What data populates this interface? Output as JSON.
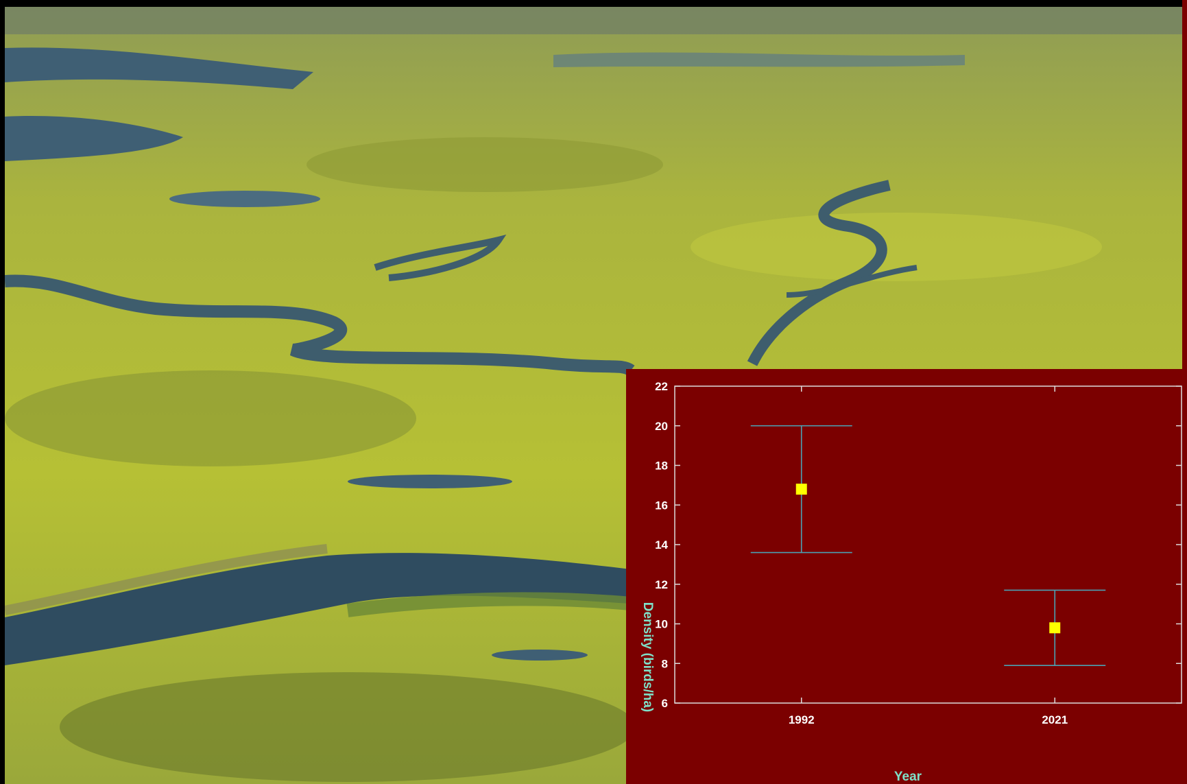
{
  "colors": {
    "chart_background": "#7b0000",
    "axis": "#dcdcdc",
    "tick_label": "#ffffff",
    "axis_title": "#7fe0c8",
    "marker": "#ffff00",
    "error_bar": "#4aa3b5"
  },
  "chart_data": {
    "type": "scatter",
    "title": "",
    "xlabel": "Year",
    "ylabel": "Density (birds/ha)",
    "ylim": [
      6,
      22
    ],
    "yticks": [
      6,
      8,
      10,
      12,
      14,
      16,
      18,
      20,
      22
    ],
    "categories": [
      "1992",
      "2021"
    ],
    "points": [
      {
        "x": "1992",
        "y": 16.8,
        "lower": 13.6,
        "upper": 20.0
      },
      {
        "x": "2021",
        "y": 9.8,
        "lower": 7.9,
        "upper": 11.7
      }
    ],
    "grid": false,
    "legend": "none"
  }
}
